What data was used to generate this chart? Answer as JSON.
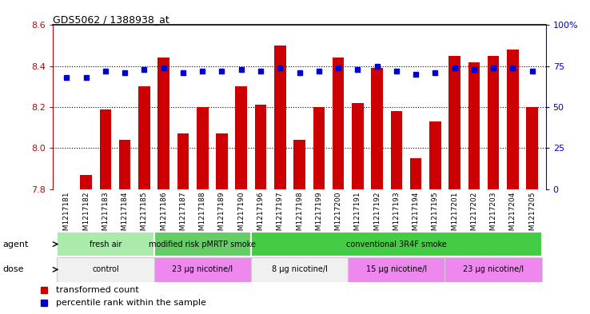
{
  "title": "GDS5062 / 1388938_at",
  "samples": [
    "GSM1217181",
    "GSM1217182",
    "GSM1217183",
    "GSM1217184",
    "GSM1217185",
    "GSM1217186",
    "GSM1217187",
    "GSM1217188",
    "GSM1217189",
    "GSM1217190",
    "GSM1217196",
    "GSM1217197",
    "GSM1217198",
    "GSM1217199",
    "GSM1217200",
    "GSM1217191",
    "GSM1217192",
    "GSM1217193",
    "GSM1217194",
    "GSM1217195",
    "GSM1217201",
    "GSM1217202",
    "GSM1217203",
    "GSM1217204",
    "GSM1217205"
  ],
  "bar_values": [
    7.8,
    7.87,
    8.19,
    8.04,
    8.3,
    8.44,
    8.07,
    8.2,
    8.07,
    8.3,
    8.21,
    8.5,
    8.04,
    8.2,
    8.44,
    8.22,
    8.39,
    8.18,
    7.95,
    8.13,
    8.45,
    8.42,
    8.45,
    8.48,
    8.2
  ],
  "percentile_values": [
    68,
    68,
    72,
    71,
    73,
    74,
    71,
    72,
    72,
    73,
    72,
    74,
    71,
    72,
    74,
    73,
    75,
    72,
    70,
    71,
    74,
    73,
    74,
    74,
    72
  ],
  "bar_color": "#cc0000",
  "percentile_color": "#0000cc",
  "ylim_left": [
    7.8,
    8.6
  ],
  "ylim_right": [
    0,
    100
  ],
  "yticks_left": [
    7.8,
    8.0,
    8.2,
    8.4,
    8.6
  ],
  "yticks_right": [
    0,
    25,
    50,
    75,
    100
  ],
  "ytick_labels_right": [
    "0",
    "25",
    "50",
    "75",
    "100%"
  ],
  "grid_values": [
    8.0,
    8.2,
    8.4
  ],
  "agent_groups": [
    {
      "label": "fresh air",
      "start": 0,
      "end": 5,
      "color": "#aaeaaa"
    },
    {
      "label": "modified risk pMRTP smoke",
      "start": 5,
      "end": 10,
      "color": "#66cc66"
    },
    {
      "label": "conventional 3R4F smoke",
      "start": 10,
      "end": 25,
      "color": "#44cc44"
    }
  ],
  "dose_groups": [
    {
      "label": "control",
      "start": 0,
      "end": 5,
      "color": "#f0f0f0"
    },
    {
      "label": "23 μg nicotine/l",
      "start": 5,
      "end": 10,
      "color": "#ee88ee"
    },
    {
      "label": "8 μg nicotine/l",
      "start": 10,
      "end": 15,
      "color": "#f0f0f0"
    },
    {
      "label": "15 μg nicotine/l",
      "start": 15,
      "end": 20,
      "color": "#ee88ee"
    },
    {
      "label": "23 μg nicotine/l",
      "start": 20,
      "end": 25,
      "color": "#ee88ee"
    }
  ],
  "agent_label": "agent",
  "dose_label": "dose",
  "legend_bar_label": "transformed count",
  "legend_pct_label": "percentile rank within the sample",
  "fig_bg_color": "#ffffff",
  "plot_bg_color": "#ffffff",
  "tick_bg_color": "#d8d8d8"
}
